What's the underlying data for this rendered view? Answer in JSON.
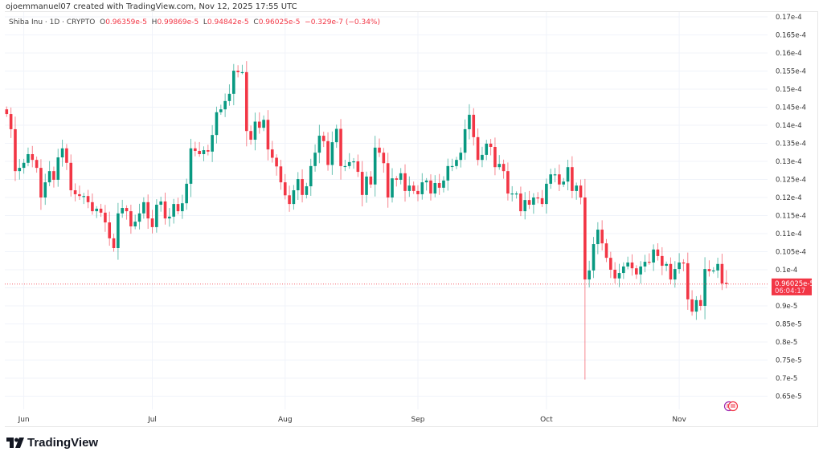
{
  "credit": "ojoemmanuel07 created with TradingView.com, Nov 12, 2025 17:55 UTC",
  "legend": {
    "symbol": "Shiba Inu · 1D · CRYPTO",
    "o_label": "O",
    "o": "0.96359e-5",
    "h_label": "H",
    "h": "0.99869e-5",
    "l_label": "L",
    "l": "0.94842e-5",
    "c_label": "C",
    "c": "0.96025e-5",
    "change": "−0.329e-7 (−0.34%)"
  },
  "last_price": {
    "label": "0.96025e-5",
    "countdown": "06:04:17",
    "value": 0.96025
  },
  "brand": "TradingView",
  "colors": {
    "up": "#089981",
    "down": "#f23645",
    "grid": "#f0f3fa",
    "text": "#131722"
  },
  "chart_data": {
    "type": "candlestick",
    "unit": "e-5",
    "first_date": "2025-05-28",
    "last_date": "2025-11-12",
    "y_ticks": [
      {
        "v": 1.7,
        "label": "0.17e-4"
      },
      {
        "v": 1.65,
        "label": "0.165e-4"
      },
      {
        "v": 1.6,
        "label": "0.16e-4"
      },
      {
        "v": 1.55,
        "label": "0.155e-4"
      },
      {
        "v": 1.5,
        "label": "0.15e-4"
      },
      {
        "v": 1.45,
        "label": "0.145e-4"
      },
      {
        "v": 1.4,
        "label": "0.14e-4"
      },
      {
        "v": 1.35,
        "label": "0.135e-4"
      },
      {
        "v": 1.3,
        "label": "0.13e-4"
      },
      {
        "v": 1.25,
        "label": "0.125e-4"
      },
      {
        "v": 1.2,
        "label": "0.12e-4"
      },
      {
        "v": 1.15,
        "label": "0.115e-4"
      },
      {
        "v": 1.1,
        "label": "0.11e-4"
      },
      {
        "v": 1.05,
        "label": "0.105e-4"
      },
      {
        "v": 1.0,
        "label": "0.1e-4"
      },
      {
        "v": 0.95,
        "label": ""
      },
      {
        "v": 0.9,
        "label": "0.9e-5"
      },
      {
        "v": 0.85,
        "label": "0.85e-5"
      },
      {
        "v": 0.8,
        "label": "0.8e-5"
      },
      {
        "v": 0.75,
        "label": "0.75e-5"
      },
      {
        "v": 0.7,
        "label": "0.7e-5"
      },
      {
        "v": 0.65,
        "label": "0.65e-5"
      }
    ],
    "ylim": [
      0.625,
      1.725
    ],
    "x_ticks": [
      {
        "index": 4,
        "label": "Jun"
      },
      {
        "index": 34,
        "label": "Jul"
      },
      {
        "index": 65,
        "label": "Aug"
      },
      {
        "index": 96,
        "label": "Sep"
      },
      {
        "index": 126,
        "label": "Oct"
      },
      {
        "index": 157,
        "label": "Nov"
      }
    ],
    "first_open": 1.444,
    "last_open": 0.96359,
    "last_high": 0.99869,
    "last_low": 0.94842,
    "notable_lows": [
      {
        "index": 135,
        "value": 0.696
      }
    ],
    "closes": [
      1.431,
      1.389,
      1.273,
      1.282,
      1.296,
      1.32,
      1.304,
      1.282,
      1.2,
      1.242,
      1.273,
      1.249,
      1.311,
      1.336,
      1.296,
      1.22,
      1.209,
      1.204,
      1.204,
      1.187,
      1.162,
      1.169,
      1.158,
      1.131,
      1.087,
      1.06,
      1.156,
      1.171,
      1.162,
      1.12,
      1.133,
      1.156,
      1.187,
      1.142,
      1.118,
      1.18,
      1.189,
      1.142,
      1.147,
      1.182,
      1.162,
      1.184,
      1.238,
      1.336,
      1.329,
      1.32,
      1.331,
      1.327,
      1.373,
      1.436,
      1.444,
      1.467,
      1.487,
      1.551,
      1.547,
      1.547,
      1.384,
      1.36,
      1.41,
      1.393,
      1.415,
      1.333,
      1.31,
      1.286,
      1.242,
      1.206,
      1.182,
      1.22,
      1.251,
      1.207,
      1.231,
      1.287,
      1.324,
      1.371,
      1.356,
      1.29,
      1.353,
      1.39,
      1.287,
      1.287,
      1.298,
      1.3,
      1.271,
      1.207,
      1.258,
      1.236,
      1.338,
      1.324,
      1.295,
      1.2,
      1.253,
      1.249,
      1.267,
      1.218,
      1.233,
      1.218,
      1.209,
      1.242,
      1.247,
      1.211,
      1.24,
      1.227,
      1.247,
      1.287,
      1.287,
      1.304,
      1.324,
      1.389,
      1.429,
      1.367,
      1.304,
      1.318,
      1.349,
      1.34,
      1.284,
      1.293,
      1.273,
      1.211,
      1.211,
      1.211,
      1.162,
      1.193,
      1.18,
      1.2,
      1.198,
      1.182,
      1.238,
      1.264,
      1.264,
      1.236,
      1.244,
      1.284,
      1.218,
      1.233,
      1.2,
      0.973,
      0.998,
      1.071,
      1.111,
      1.073,
      1.033,
      1.0,
      0.976,
      0.991,
      1.009,
      1.02,
      1.004,
      0.987,
      1.009,
      1.022,
      1.02,
      1.056,
      1.038,
      1.011,
      1.016,
      0.973,
      1.002,
      1.02,
      1.018,
      0.918,
      0.884,
      0.916,
      0.9,
      1.002,
      0.996,
      0.998,
      1.016,
      0.962,
      0.96025
    ]
  }
}
